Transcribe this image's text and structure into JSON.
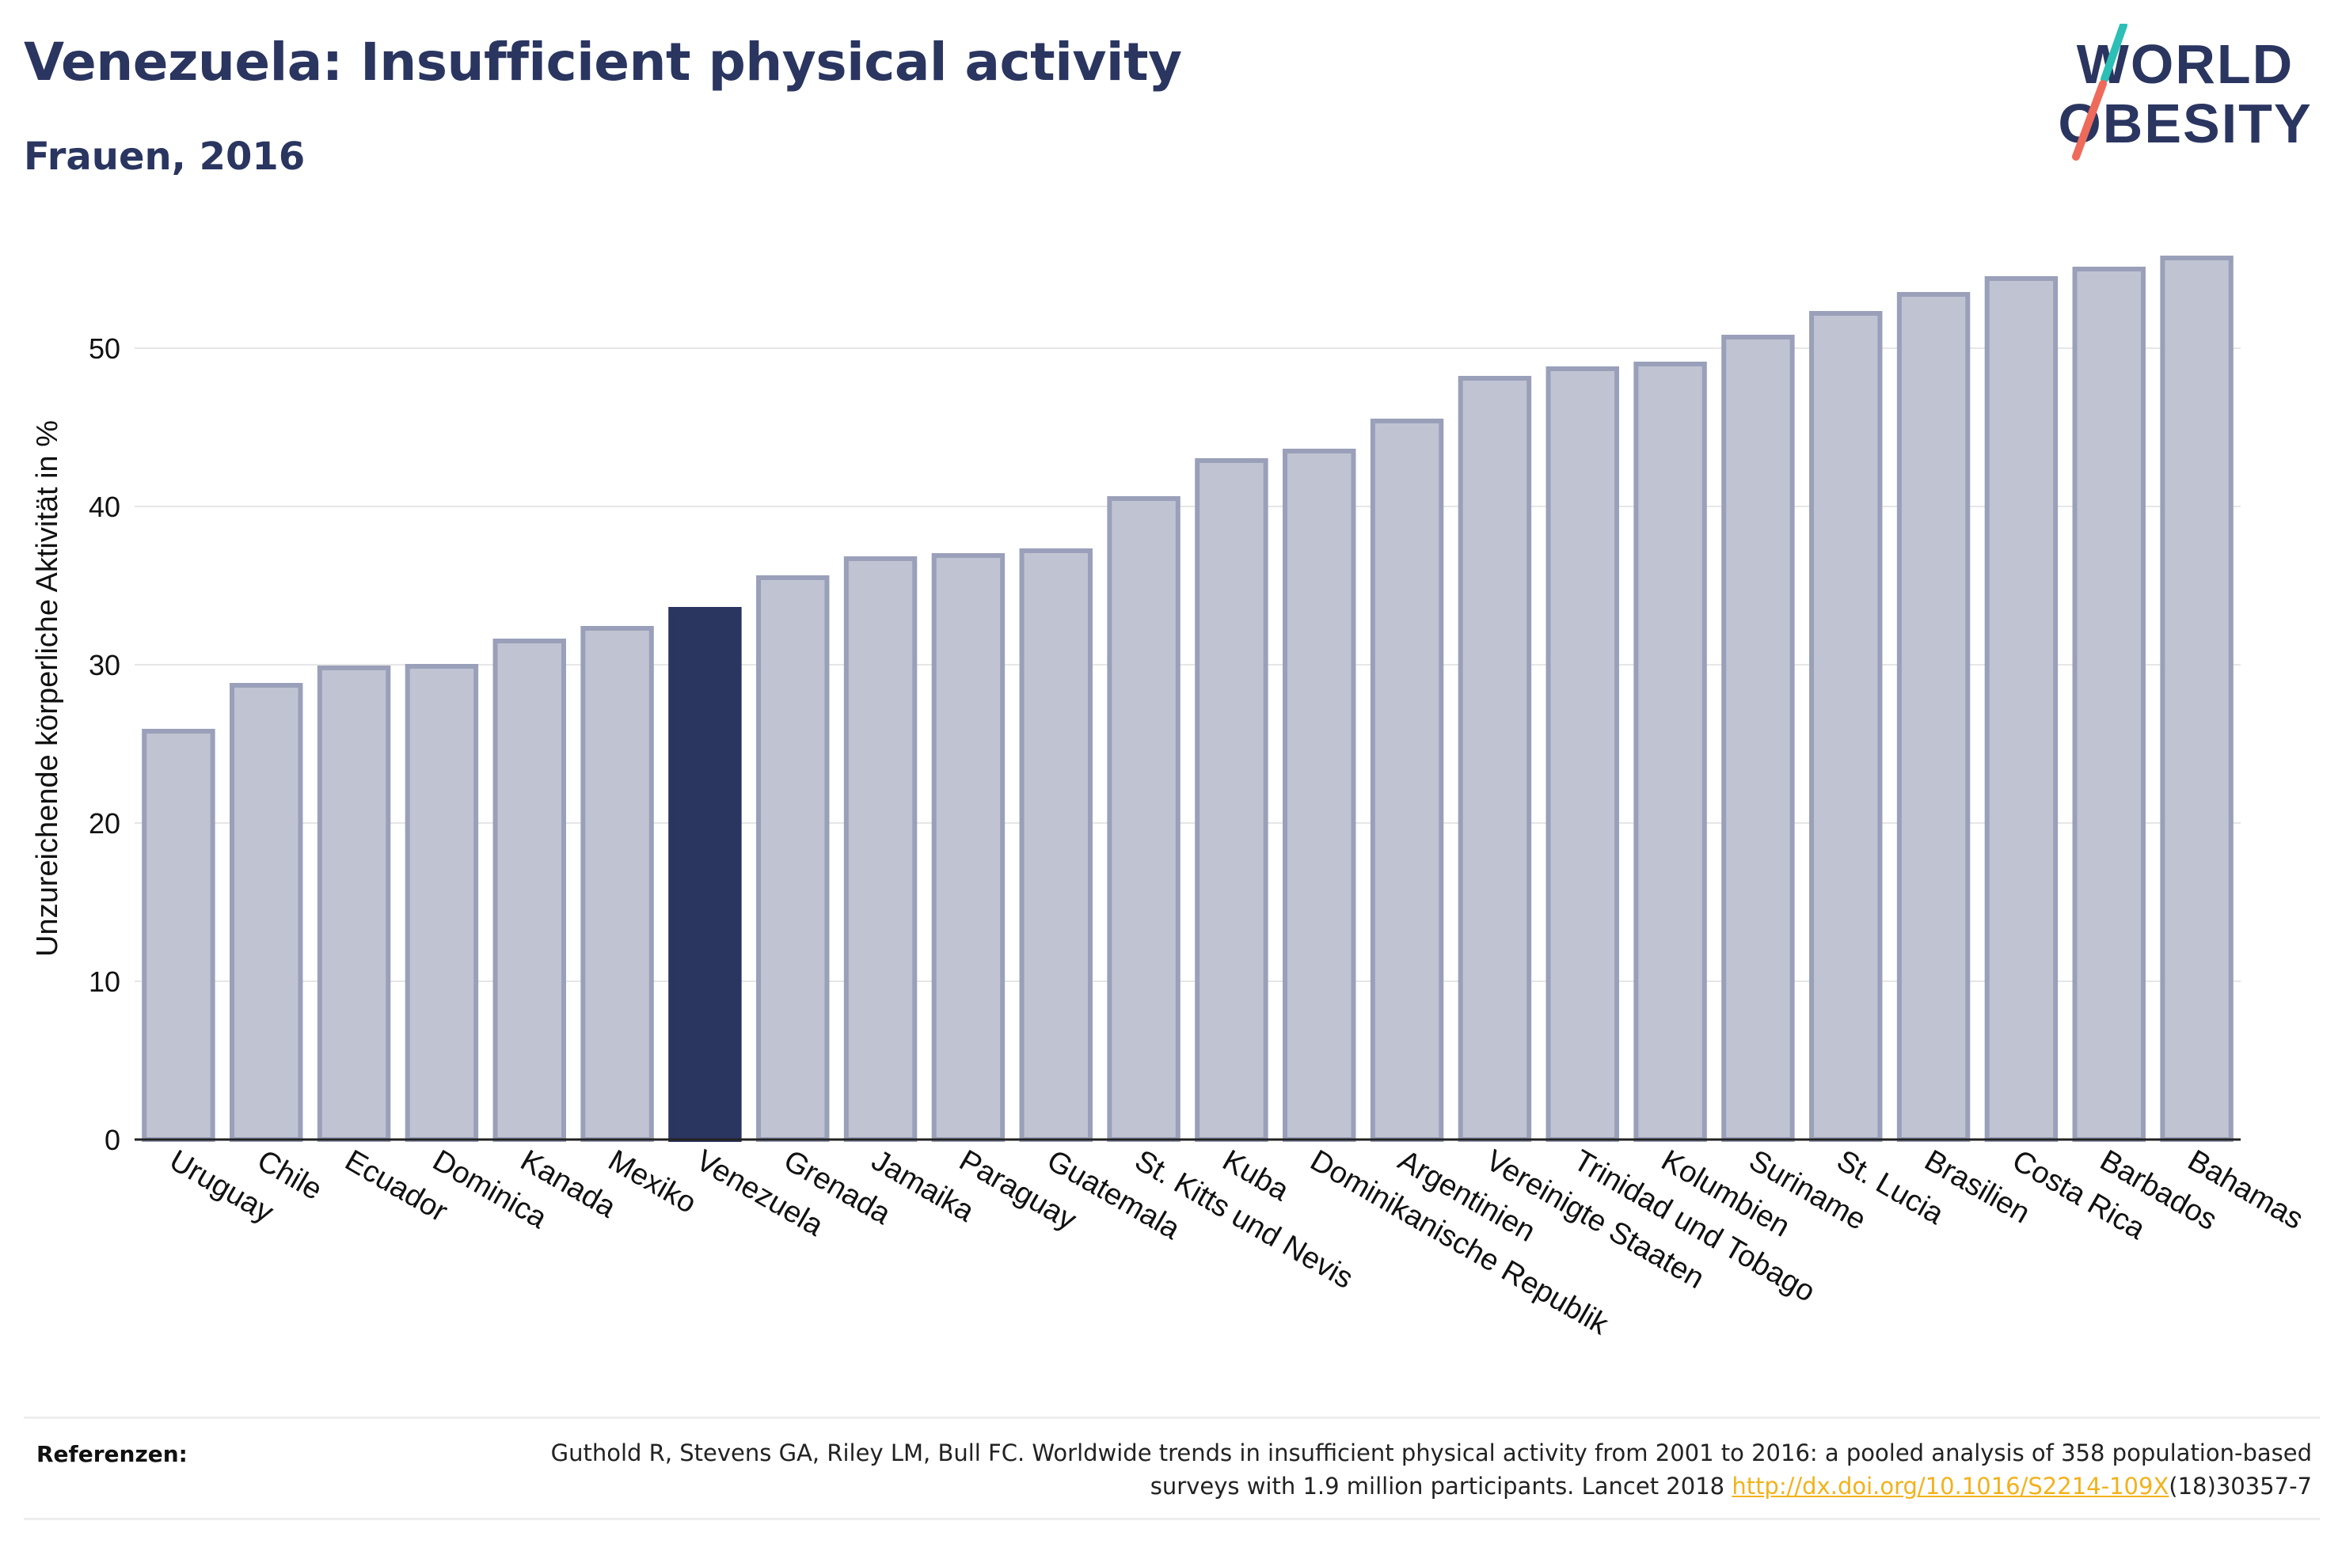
{
  "header": {
    "title": "Venezuela: Insufficient physical activity",
    "subtitle": "Frauen, 2016"
  },
  "logo": {
    "line1": "WORLD",
    "line2": "OBESITY"
  },
  "colors": {
    "highlight": "#2a3560",
    "bar_fill": "#c0c4d2",
    "bar_stroke": "#9aa0b9",
    "logo_text": "#2a3560",
    "logo_slash_teal": "#2bbfb5",
    "logo_slash_coral": "#ee6a5a",
    "link": "#f2b21c"
  },
  "chart_data": {
    "type": "bar",
    "title": "Venezuela: Insufficient physical activity",
    "subtitle": "Frauen, 2016",
    "xlabel": "",
    "ylabel": "Unzureichende körperliche Aktivität in %",
    "ylim": [
      0,
      57
    ],
    "yticks": [
      0,
      10,
      20,
      30,
      40,
      50
    ],
    "grid": true,
    "highlight": "Venezuela",
    "categories": [
      "Uruguay",
      "Chile",
      "Ecuador",
      "Dominica",
      "Kanada",
      "Mexiko",
      "Venezuela",
      "Grenada",
      "Jamaika",
      "Paraguay",
      "Guatemala",
      "St. Kitts und Nevis",
      "Kuba",
      "Dominikanische Republik",
      "Argentinien",
      "Vereinigte Staaten",
      "Trinidad und Tobago",
      "Kolumbien",
      "Suriname",
      "St. Lucia",
      "Brasilien",
      "Costa Rica",
      "Barbados",
      "Bahamas"
    ],
    "values": [
      25.8,
      28.7,
      29.8,
      29.9,
      31.5,
      32.3,
      33.5,
      35.5,
      36.7,
      36.9,
      37.2,
      40.5,
      42.9,
      43.5,
      45.4,
      48.1,
      48.7,
      49.0,
      50.7,
      52.2,
      53.4,
      54.4,
      55.0,
      55.7
    ]
  },
  "references": {
    "label": "Referenzen:",
    "text_before": "Guthold R, Stevens GA, Riley LM, Bull FC. Worldwide trends in insufficient physical activity from 2001 to 2016: a pooled analysis of 358 population-based surveys with 1.9 million participants. Lancet 2018 ",
    "link": "http://dx.doi.org/10.1016/S2214-109X",
    "text_after": "(18)30357-7"
  }
}
